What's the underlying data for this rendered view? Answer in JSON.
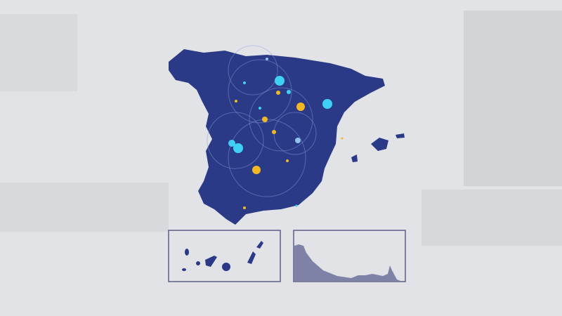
{
  "map": {
    "region": "Spain",
    "land_color": "#2b3a87",
    "marker_colors": {
      "cyan": "#3fd0f5",
      "yellow": "#f2b824",
      "light_blue": "#8fc3ee"
    },
    "inset_border_color": "#5a5f85",
    "inset_fill_color": "#7d82a6",
    "background_color": "#e2e3e6"
  }
}
